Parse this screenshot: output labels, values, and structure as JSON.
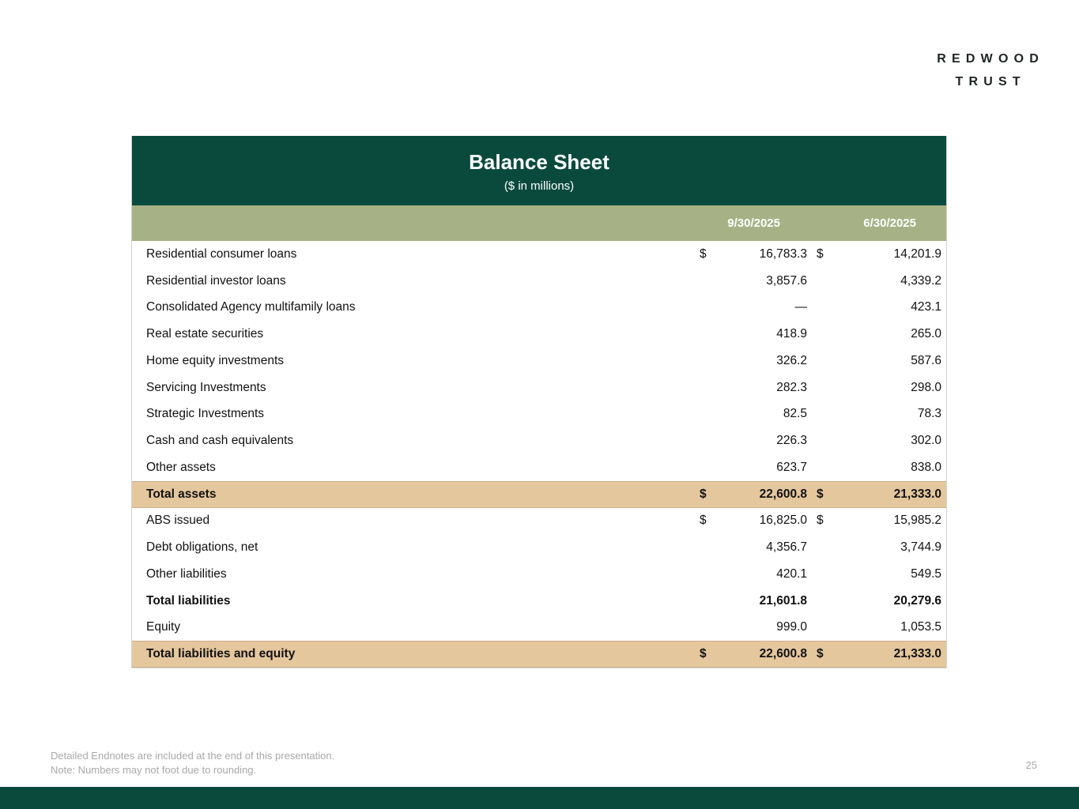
{
  "logo": {
    "line1": "REDWOOD",
    "line2": "TRUST"
  },
  "table": {
    "title": "Balance Sheet",
    "subtitle": "($ in millions)",
    "columns": [
      "9/30/2025",
      "6/30/2025"
    ],
    "rows": [
      {
        "label": "Residential consumer loans",
        "d1": "$",
        "v1": "16,783.3",
        "d2": "$",
        "v2": "14,201.9",
        "style": "normal"
      },
      {
        "label": "Residential investor loans",
        "d1": "",
        "v1": "3,857.6",
        "d2": "",
        "v2": "4,339.2",
        "style": "normal"
      },
      {
        "label": "Consolidated Agency multifamily loans",
        "d1": "",
        "v1": "—",
        "d2": "",
        "v2": "423.1",
        "style": "normal"
      },
      {
        "label": "Real estate securities",
        "d1": "",
        "v1": "418.9",
        "d2": "",
        "v2": "265.0",
        "style": "normal"
      },
      {
        "label": "Home equity investments",
        "d1": "",
        "v1": "326.2",
        "d2": "",
        "v2": "587.6",
        "style": "normal"
      },
      {
        "label": "Servicing Investments",
        "d1": "",
        "v1": "282.3",
        "d2": "",
        "v2": "298.0",
        "style": "normal"
      },
      {
        "label": "Strategic Investments",
        "d1": "",
        "v1": "82.5",
        "d2": "",
        "v2": "78.3",
        "style": "normal"
      },
      {
        "label": "Cash and cash equivalents",
        "d1": "",
        "v1": "226.3",
        "d2": "",
        "v2": "302.0",
        "style": "normal"
      },
      {
        "label": "Other assets",
        "d1": "",
        "v1": "623.7",
        "d2": "",
        "v2": "838.0",
        "style": "normal"
      },
      {
        "label": "Total assets",
        "d1": "$",
        "v1": "22,600.8",
        "d2": "$",
        "v2": "21,333.0",
        "style": "total"
      },
      {
        "label": "ABS issued",
        "d1": "$",
        "v1": "16,825.0",
        "d2": "$",
        "v2": "15,985.2",
        "style": "normal"
      },
      {
        "label": "Debt obligations, net",
        "d1": "",
        "v1": "4,356.7",
        "d2": "",
        "v2": "3,744.9",
        "style": "normal"
      },
      {
        "label": "Other liabilities",
        "d1": "",
        "v1": "420.1",
        "d2": "",
        "v2": "549.5",
        "style": "normal"
      },
      {
        "label": "Total liabilities",
        "d1": "",
        "v1": "21,601.8",
        "d2": "",
        "v2": "20,279.6",
        "style": "bold"
      },
      {
        "label": "Equity",
        "d1": "",
        "v1": "999.0",
        "d2": "",
        "v2": "1,053.5",
        "style": "normal"
      },
      {
        "label": "Total liabilities and equity",
        "d1": "$",
        "v1": "22,600.8",
        "d2": "$",
        "v2": "21,333.0",
        "style": "total"
      }
    ]
  },
  "footer": {
    "note1": "Detailed Endnotes are included at the end of this presentation.",
    "note2": "Note: Numbers may not foot due to rounding.",
    "page_number": "25"
  },
  "colors": {
    "dark-green": "#0a4a3d",
    "sage": "#a6b285",
    "tan": "#e5c79d",
    "footnote-gray": "#a8a8a8"
  }
}
